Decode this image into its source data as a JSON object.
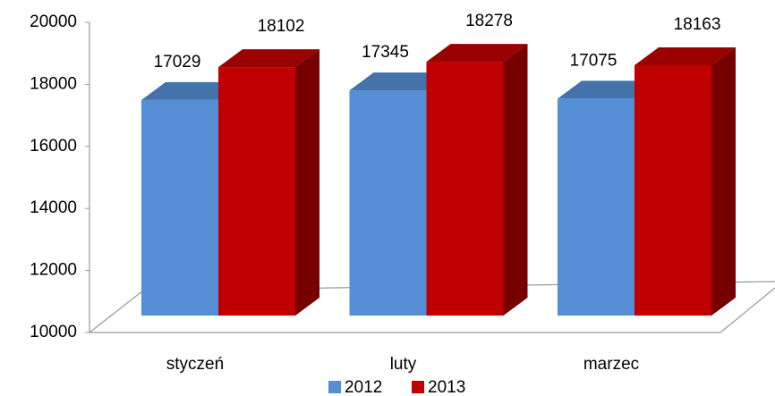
{
  "chart_data": {
    "type": "bar3d",
    "categories": [
      "styczeń",
      "luty",
      "marzec"
    ],
    "series": [
      {
        "name": "2012",
        "color": "#558ed5",
        "values": [
          17029,
          17345,
          17075
        ]
      },
      {
        "name": "2013",
        "color": "#c00000",
        "values": [
          18102,
          18278,
          18163
        ]
      }
    ],
    "ylim": [
      10000,
      20000
    ],
    "yticks": [
      10000,
      12000,
      14000,
      16000,
      18000,
      20000
    ],
    "legend": "bottom"
  }
}
